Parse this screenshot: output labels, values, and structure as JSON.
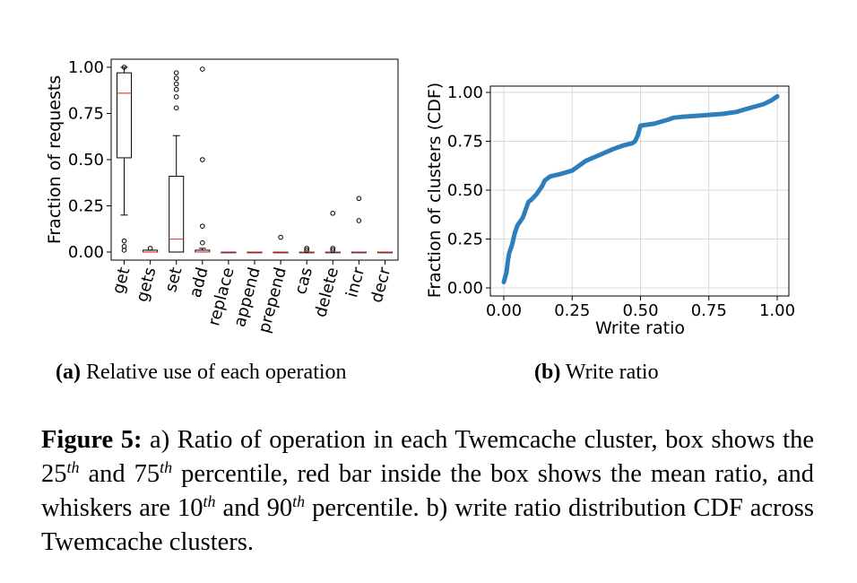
{
  "figure": {
    "label": "Figure 5:",
    "caption_parts": [
      " a) Ratio of operation in each Twemcache cluster, box shows the 25",
      "th",
      " and 75",
      "th",
      " percentile, red bar inside the box shows the mean ratio, and whiskers are 10",
      "th",
      " and 90",
      "th",
      " percentile. b) write ratio distribution CDF across Twemcache clusters."
    ]
  },
  "subfigures": {
    "a": {
      "tag": "(a)",
      "title": "Relative use of each operation"
    },
    "b": {
      "tag": "(b)",
      "title": "Write ratio"
    }
  },
  "chart_data": [
    {
      "type": "box",
      "ylabel": "Fraction of requests",
      "xlabel": "",
      "ylim": [
        0.0,
        1.0
      ],
      "yticks": [
        "0.00",
        "0.25",
        "0.50",
        "0.75",
        "1.00"
      ],
      "categories": [
        "get",
        "gets",
        "set",
        "add",
        "replace",
        "append",
        "prepend",
        "cas",
        "delete",
        "incr",
        "decr"
      ],
      "boxes": [
        {
          "q1": 0.51,
          "q3": 0.97,
          "mean": 0.86,
          "whislo": 0.2,
          "whishi": 1.0,
          "outliers": [
            0.01,
            0.03,
            0.06,
            1.0
          ]
        },
        {
          "q1": 0.0,
          "q3": 0.01,
          "mean": 0.0,
          "whislo": 0.0,
          "whishi": 0.01,
          "outliers": [
            0.02
          ]
        },
        {
          "q1": 0.0,
          "q3": 0.41,
          "mean": 0.07,
          "whislo": 0.0,
          "whishi": 0.63,
          "outliers": [
            0.78,
            0.84,
            0.88,
            0.91,
            0.94,
            0.97
          ]
        },
        {
          "q1": 0.0,
          "q3": 0.01,
          "mean": 0.0,
          "whislo": 0.0,
          "whishi": 0.02,
          "outliers": [
            0.05,
            0.14,
            0.5,
            0.99
          ]
        },
        {
          "q1": 0.0,
          "q3": 0.0,
          "mean": 0.0,
          "whislo": 0.0,
          "whishi": 0.0,
          "outliers": []
        },
        {
          "q1": 0.0,
          "q3": 0.0,
          "mean": 0.0,
          "whislo": 0.0,
          "whishi": 0.0,
          "outliers": []
        },
        {
          "q1": 0.0,
          "q3": 0.0,
          "mean": 0.0,
          "whislo": 0.0,
          "whishi": 0.0,
          "outliers": [
            0.08
          ]
        },
        {
          "q1": 0.0,
          "q3": 0.0,
          "mean": 0.0,
          "whislo": 0.0,
          "whishi": 0.0,
          "outliers": [
            0.01,
            0.02
          ]
        },
        {
          "q1": 0.0,
          "q3": 0.0,
          "mean": 0.0,
          "whislo": 0.0,
          "whishi": 0.0,
          "outliers": [
            0.01,
            0.02,
            0.21
          ]
        },
        {
          "q1": 0.0,
          "q3": 0.0,
          "mean": 0.0,
          "whislo": 0.0,
          "whishi": 0.0,
          "outliers": [
            0.17,
            0.29
          ]
        },
        {
          "q1": 0.0,
          "q3": 0.0,
          "mean": 0.0,
          "whislo": 0.0,
          "whishi": 0.0,
          "outliers": []
        }
      ],
      "colors": {
        "box": "#000000",
        "mean": "#e8464a"
      }
    },
    {
      "type": "line",
      "xlabel": "Write ratio",
      "ylabel": "Fraction of clusters (CDF)",
      "xlim": [
        0.0,
        1.0
      ],
      "ylim": [
        0.0,
        1.0
      ],
      "xticks": [
        "0.00",
        "0.25",
        "0.50",
        "0.75",
        "1.00"
      ],
      "yticks": [
        "0.00",
        "0.25",
        "0.50",
        "0.75",
        "1.00"
      ],
      "grid": true,
      "color": "#2e7ebc",
      "x": [
        0.0,
        0.01,
        0.015,
        0.02,
        0.03,
        0.035,
        0.04,
        0.05,
        0.06,
        0.07,
        0.08,
        0.09,
        0.1,
        0.12,
        0.14,
        0.15,
        0.17,
        0.2,
        0.25,
        0.3,
        0.35,
        0.4,
        0.44,
        0.47,
        0.48,
        0.49,
        0.5,
        0.55,
        0.6,
        0.62,
        0.65,
        0.7,
        0.8,
        0.85,
        0.9,
        0.95,
        0.98,
        1.0
      ],
      "y": [
        0.03,
        0.08,
        0.14,
        0.18,
        0.22,
        0.25,
        0.28,
        0.32,
        0.34,
        0.36,
        0.4,
        0.44,
        0.45,
        0.48,
        0.52,
        0.55,
        0.57,
        0.58,
        0.6,
        0.65,
        0.68,
        0.71,
        0.73,
        0.74,
        0.75,
        0.78,
        0.83,
        0.84,
        0.86,
        0.87,
        0.875,
        0.88,
        0.89,
        0.9,
        0.92,
        0.94,
        0.96,
        0.98
      ]
    }
  ]
}
